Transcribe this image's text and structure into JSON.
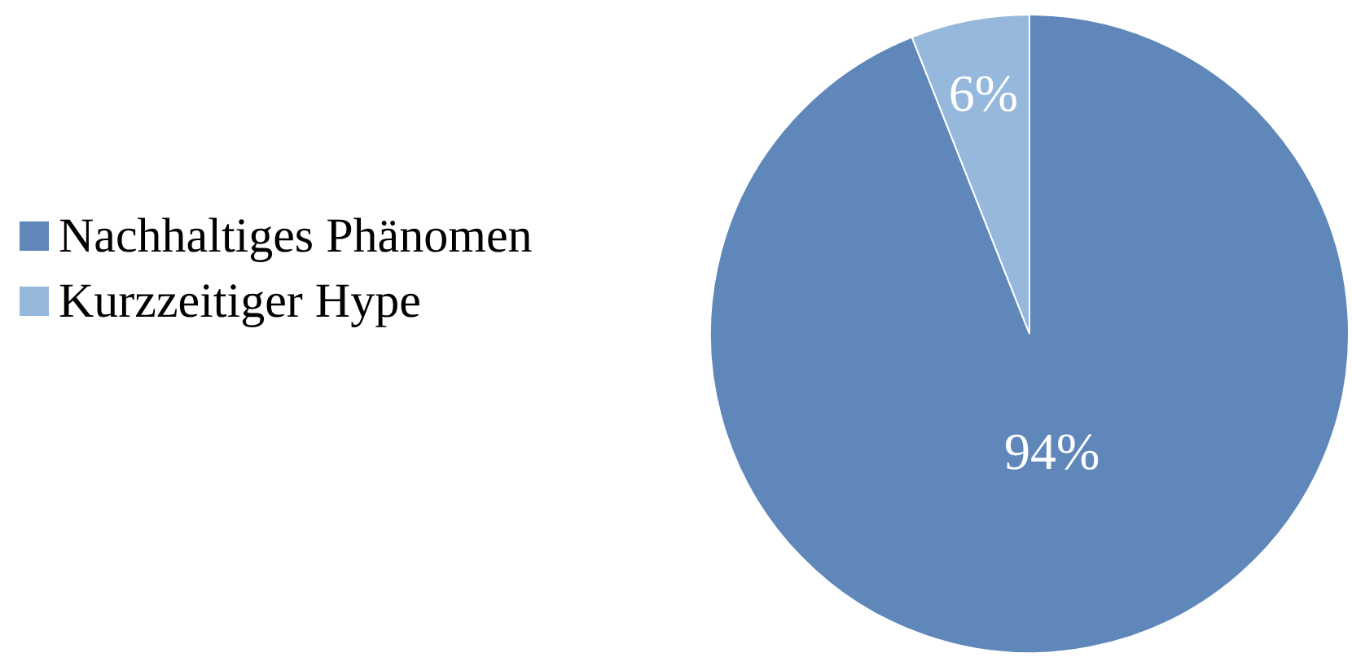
{
  "chart_data": {
    "type": "pie",
    "categories": [
      "Nachhaltiges Phänomen",
      "Kurzzeitiger Hype"
    ],
    "values": [
      94,
      6
    ],
    "colors": [
      "#5f87ba",
      "#95b8dc"
    ],
    "value_labels": [
      "94%",
      "6%"
    ],
    "legend": "left"
  }
}
